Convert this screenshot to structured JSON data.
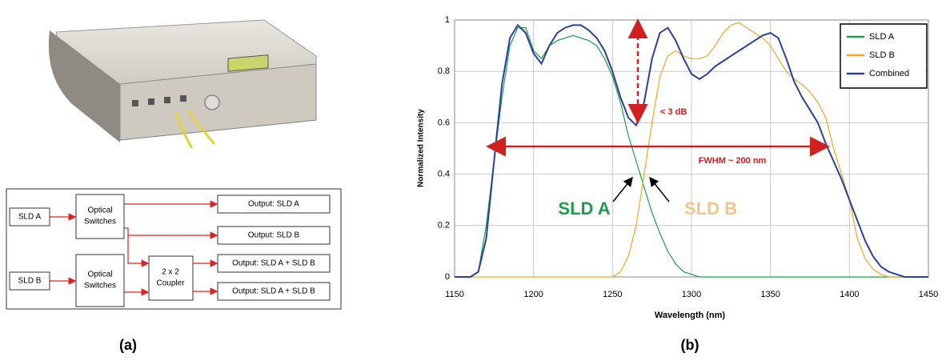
{
  "figure": {
    "label_a": "(a)",
    "label_b": "(b)",
    "diagram": {
      "nodes": [
        {
          "label": [
            "SLD A"
          ]
        },
        {
          "label": [
            "SLD B"
          ]
        },
        {
          "label": [
            "Optical",
            "Switches"
          ]
        },
        {
          "label": [
            "Optical",
            "Switches"
          ]
        },
        {
          "label": [
            "2 x 2",
            "Coupler"
          ]
        },
        {
          "label": [
            "Output: SLD A"
          ]
        },
        {
          "label": [
            "Output: SLD B"
          ]
        },
        {
          "label": [
            "Output: SLD A + SLD B"
          ]
        },
        {
          "label": [
            "Output: SLD A + SLD B"
          ]
        }
      ]
    }
  },
  "chart_data": {
    "type": "line",
    "x_label": "Wavelength (nm)",
    "y_label": "Normalized Intensity",
    "x": [
      1150,
      1155,
      1160,
      1165,
      1170,
      1175,
      1180,
      1185,
      1190,
      1195,
      1200,
      1205,
      1210,
      1215,
      1220,
      1225,
      1230,
      1235,
      1240,
      1245,
      1250,
      1255,
      1260,
      1265,
      1270,
      1275,
      1280,
      1285,
      1290,
      1295,
      1300,
      1305,
      1310,
      1315,
      1320,
      1325,
      1330,
      1335,
      1340,
      1345,
      1350,
      1355,
      1360,
      1365,
      1370,
      1375,
      1380,
      1385,
      1390,
      1395,
      1400,
      1405,
      1410,
      1415,
      1420,
      1425,
      1430,
      1435,
      1440,
      1445,
      1450
    ],
    "series": [
      {
        "name": "SLD A",
        "color": "#1aa04a",
        "values": [
          0,
          0,
          0,
          0.02,
          0.2,
          0.45,
          0.7,
          0.9,
          0.97,
          0.97,
          0.88,
          0.85,
          0.9,
          0.92,
          0.93,
          0.94,
          0.93,
          0.92,
          0.9,
          0.85,
          0.78,
          0.68,
          0.55,
          0.45,
          0.35,
          0.25,
          0.17,
          0.1,
          0.05,
          0.02,
          0.01,
          0,
          0,
          0,
          0,
          0,
          0,
          0,
          0,
          0,
          0,
          0,
          0,
          0,
          0,
          0,
          0,
          0,
          0,
          0,
          0,
          0,
          0,
          0,
          0,
          0,
          0,
          0,
          0,
          0,
          0
        ]
      },
      {
        "name": "SLD B",
        "color": "#f5a623",
        "values": [
          0,
          0,
          0,
          0,
          0,
          0,
          0,
          0,
          0,
          0,
          0,
          0,
          0,
          0,
          0,
          0,
          0,
          0,
          0,
          0,
          0,
          0.02,
          0.08,
          0.2,
          0.4,
          0.6,
          0.78,
          0.86,
          0.88,
          0.86,
          0.85,
          0.85,
          0.86,
          0.9,
          0.95,
          0.98,
          0.99,
          0.97,
          0.95,
          0.93,
          0.9,
          0.85,
          0.8,
          0.77,
          0.75,
          0.72,
          0.68,
          0.62,
          0.5,
          0.4,
          0.3,
          0.15,
          0.07,
          0.03,
          0.01,
          0,
          0,
          0,
          0,
          0,
          0
        ]
      },
      {
        "name": "Combined",
        "color": "#2b3fa0",
        "values": [
          0,
          0,
          0,
          0.02,
          0.15,
          0.45,
          0.75,
          0.93,
          0.98,
          0.95,
          0.87,
          0.83,
          0.9,
          0.95,
          0.97,
          0.98,
          0.98,
          0.96,
          0.93,
          0.88,
          0.8,
          0.7,
          0.62,
          0.59,
          0.68,
          0.85,
          0.95,
          0.97,
          0.92,
          0.85,
          0.79,
          0.77,
          0.79,
          0.82,
          0.84,
          0.86,
          0.88,
          0.9,
          0.92,
          0.94,
          0.95,
          0.93,
          0.85,
          0.76,
          0.7,
          0.65,
          0.6,
          0.52,
          0.45,
          0.38,
          0.3,
          0.22,
          0.14,
          0.08,
          0.04,
          0.02,
          0.01,
          0,
          0,
          0,
          0
        ]
      }
    ],
    "xlim": [
      1150,
      1450
    ],
    "xticks": [
      1150,
      1200,
      1250,
      1300,
      1350,
      1400,
      1450
    ],
    "ylim": [
      0,
      1
    ],
    "yticks": [
      0,
      0.2,
      0.4,
      0.6,
      0.8,
      1
    ],
    "grid": true,
    "annotations": [
      "< 3 dB",
      "FWHM ~ 200 nm",
      "SLD A",
      "SLD B"
    ]
  }
}
